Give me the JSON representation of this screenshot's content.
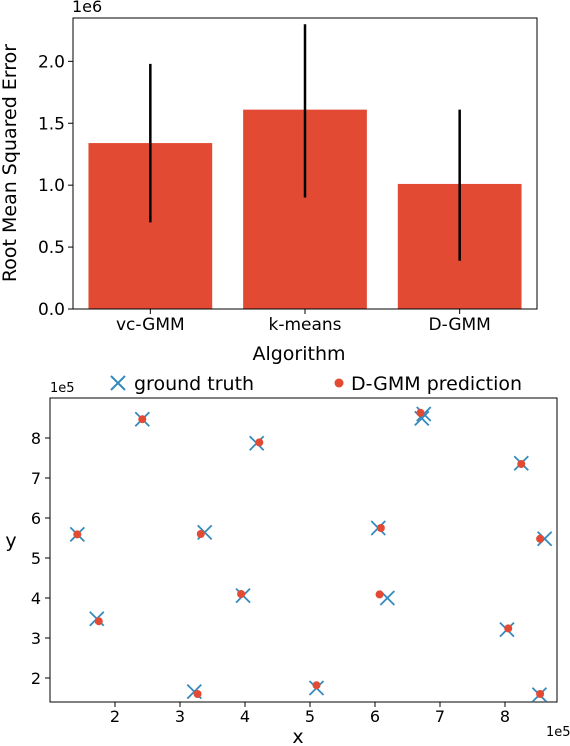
{
  "chart_data": [
    {
      "type": "bar",
      "categories": [
        "vc-GMM",
        "k-means",
        "D-GMM"
      ],
      "values": [
        1.34,
        1.61,
        1.01
      ],
      "error_low": [
        0.7,
        0.9,
        0.39
      ],
      "error_high": [
        1.98,
        2.3,
        1.61
      ],
      "xlabel": "Algorithm",
      "ylabel": "Root Mean Squared Error",
      "y_multiplier_label": "1e6",
      "ylim": [
        0,
        2.35
      ],
      "yticks": [
        0.0,
        0.5,
        1.0,
        1.5,
        2.0
      ],
      "ytick_labels": [
        "0.0",
        "0.5",
        "1.0",
        "1.5",
        "2.0"
      ],
      "bar_color": "#e24a33",
      "grid": false
    },
    {
      "type": "scatter",
      "xlabel": "x",
      "ylabel": "y",
      "x_multiplier_label": "1e5",
      "y_multiplier_label": "1e5",
      "xlim": [
        1.0,
        8.8
      ],
      "ylim": [
        1.4,
        9.0
      ],
      "xticks": [
        2,
        3,
        4,
        5,
        6,
        7,
        8
      ],
      "yticks": [
        2,
        3,
        4,
        5,
        6,
        7,
        8
      ],
      "legend_position": "top",
      "grid": false,
      "series": [
        {
          "name": "ground truth",
          "marker": "x",
          "color": "#348abd",
          "points": [
            [
              1.42,
              5.59
            ],
            [
              1.72,
              3.48
            ],
            [
              2.42,
              8.47
            ],
            [
              3.22,
              1.66
            ],
            [
              3.38,
              5.64
            ],
            [
              3.97,
              4.06
            ],
            [
              4.18,
              7.87
            ],
            [
              5.1,
              1.75
            ],
            [
              6.05,
              5.75
            ],
            [
              6.19,
              4.0
            ],
            [
              6.72,
              8.49
            ],
            [
              6.75,
              8.6
            ],
            [
              8.03,
              3.21
            ],
            [
              8.25,
              7.37
            ],
            [
              8.53,
              1.58
            ],
            [
              8.61,
              5.48
            ]
          ]
        },
        {
          "name": "D-GMM prediction",
          "marker": "o",
          "color": "#e24a33",
          "points": [
            [
              1.42,
              5.59
            ],
            [
              1.75,
              3.42
            ],
            [
              2.42,
              8.47
            ],
            [
              3.27,
              1.6
            ],
            [
              3.32,
              5.6
            ],
            [
              3.94,
              4.1
            ],
            [
              4.22,
              7.89
            ],
            [
              5.1,
              1.82
            ],
            [
              6.09,
              5.75
            ],
            [
              6.07,
              4.09
            ],
            [
              6.7,
              8.63
            ],
            [
              8.05,
              3.24
            ],
            [
              8.25,
              7.35
            ],
            [
              8.54,
              1.6
            ],
            [
              8.54,
              5.48
            ]
          ]
        }
      ]
    }
  ]
}
